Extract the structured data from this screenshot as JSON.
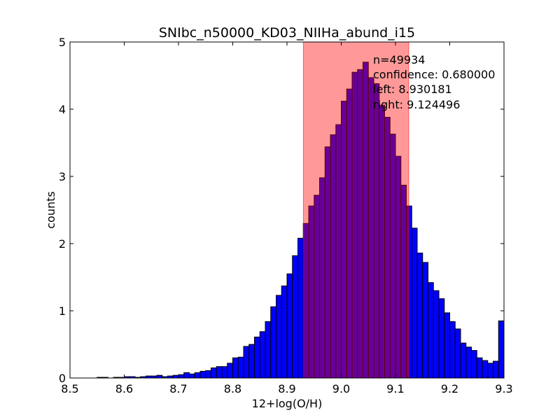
{
  "chart_data": {
    "type": "bar",
    "title": "SNIbc_n50000_KD03_NIIHa_abund_i15",
    "xlabel": "12+log(O/H)",
    "ylabel": "counts",
    "xlim": [
      8.5,
      9.3
    ],
    "ylim": [
      0,
      5
    ],
    "xticks": [
      "8.5",
      "8.6",
      "8.7",
      "8.8",
      "8.9",
      "9.0",
      "9.1",
      "9.2",
      "9.3"
    ],
    "yticks": [
      "0",
      "1",
      "2",
      "3",
      "4",
      "5"
    ],
    "grid": false,
    "bar_color": "#0000ff",
    "bins": {
      "start": 8.55,
      "width": 0.01,
      "values": [
        0.01,
        0.01,
        0.0,
        0.01,
        0.01,
        0.02,
        0.02,
        0.01,
        0.02,
        0.03,
        0.03,
        0.04,
        0.02,
        0.03,
        0.04,
        0.05,
        0.08,
        0.06,
        0.08,
        0.1,
        0.11,
        0.15,
        0.17,
        0.17,
        0.22,
        0.3,
        0.31,
        0.47,
        0.5,
        0.61,
        0.69,
        0.84,
        1.06,
        1.23,
        1.37,
        1.55,
        1.82,
        2.08,
        2.3,
        2.56,
        2.72,
        2.98,
        3.44,
        3.62,
        3.77,
        4.12,
        4.3,
        4.55,
        4.59,
        4.7,
        4.47,
        4.38,
        4.06,
        3.88,
        3.63,
        3.3,
        2.87,
        2.56,
        2.23,
        1.86,
        1.72,
        1.42,
        1.3,
        1.18,
        0.97,
        0.84,
        0.73,
        0.52,
        0.46,
        0.41,
        0.3,
        0.26,
        0.22,
        0.25,
        0.85
      ]
    },
    "confidence_band": {
      "left": 8.930181,
      "right": 9.124496,
      "color": "#ff0000",
      "opacity": 0.4
    },
    "annotation": {
      "n_label": "n=49934",
      "confidence_label": "confidence: 0.680000",
      "left_label": "left: 8.930181",
      "right_label": "right: 9.124496"
    }
  }
}
